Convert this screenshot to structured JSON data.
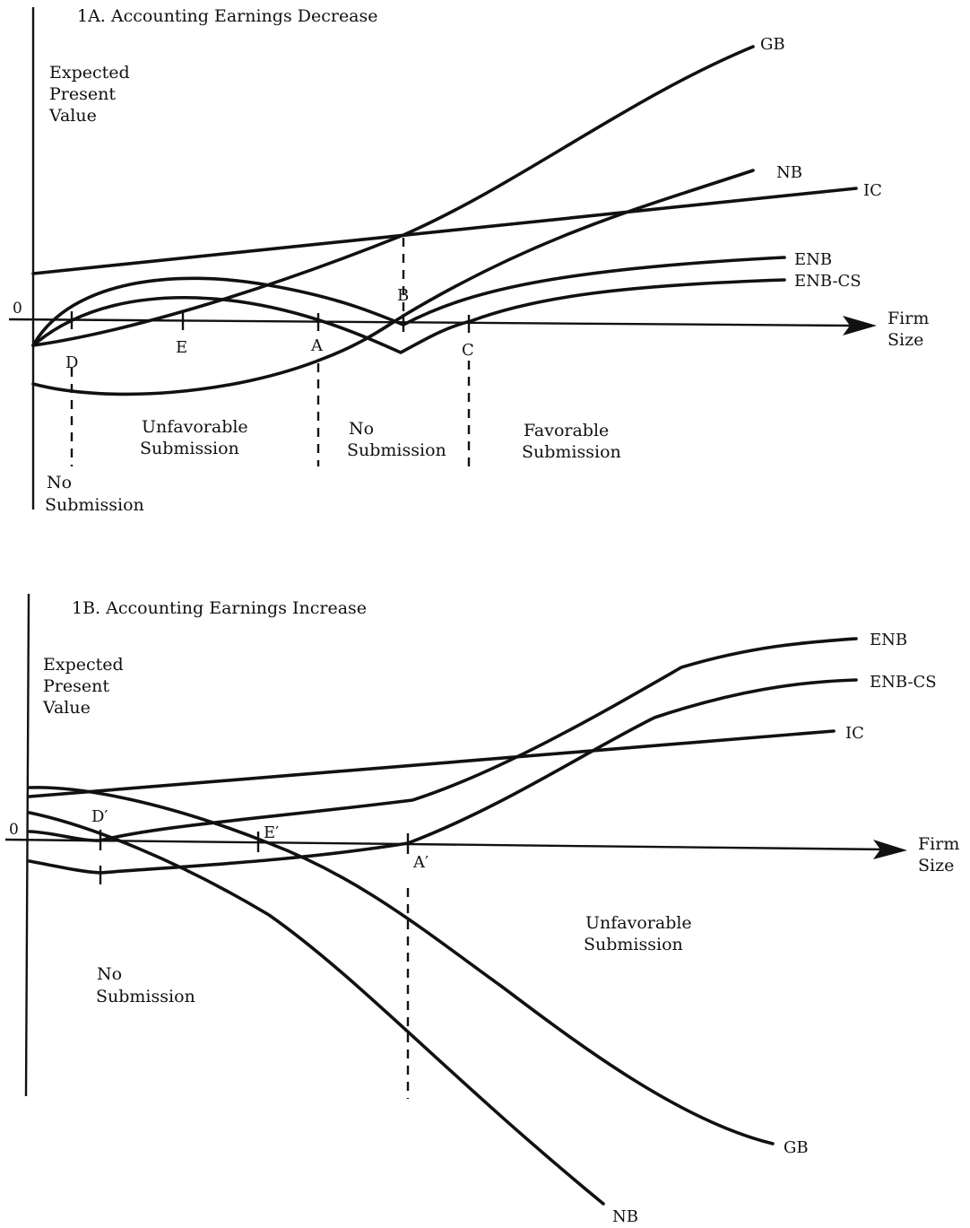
{
  "figure": {
    "panels": [
      {
        "id": "1A",
        "title": "1A.  Accounting Earnings Decrease",
        "y_axis_label": [
          "Expected",
          "Present",
          "Value"
        ],
        "x_axis_label": [
          "Firm",
          "Size"
        ],
        "zero_label": "0",
        "curves": [
          {
            "id": "GB",
            "label": "GB"
          },
          {
            "id": "NB",
            "label": "NB"
          },
          {
            "id": "IC",
            "label": "IC"
          },
          {
            "id": "ENB",
            "label": "ENB"
          },
          {
            "id": "ENB-CS",
            "label": "ENB-CS"
          }
        ],
        "points": [
          {
            "id": "D",
            "label": "D"
          },
          {
            "id": "E",
            "label": "E"
          },
          {
            "id": "A",
            "label": "A"
          },
          {
            "id": "B",
            "label": "B"
          },
          {
            "id": "C",
            "label": "C"
          }
        ],
        "regions": [
          {
            "id": "no-submission-left",
            "lines": [
              "No",
              "Submission"
            ]
          },
          {
            "id": "unfavorable",
            "lines": [
              "Unfavorable",
              "Submission"
            ]
          },
          {
            "id": "no-submission-mid",
            "lines": [
              "No",
              "Submission"
            ]
          },
          {
            "id": "favorable",
            "lines": [
              "Favorable",
              "Submission"
            ]
          }
        ]
      },
      {
        "id": "1B",
        "title": "1B.  Accounting Earnings Increase",
        "y_axis_label": [
          "Expected",
          "Present",
          "Value"
        ],
        "x_axis_label": [
          "Firm",
          "Size"
        ],
        "zero_label": "0",
        "curves": [
          {
            "id": "ENB",
            "label": "ENB"
          },
          {
            "id": "ENB-CS",
            "label": "ENB-CS"
          },
          {
            "id": "IC",
            "label": "IC"
          },
          {
            "id": "GB",
            "label": "GB"
          },
          {
            "id": "NB",
            "label": "NB"
          }
        ],
        "points": [
          {
            "id": "D'",
            "label": "D′"
          },
          {
            "id": "E'",
            "label": "E′"
          },
          {
            "id": "A'",
            "label": "A′"
          }
        ],
        "regions": [
          {
            "id": "no-submission",
            "lines": [
              "No",
              "Submission"
            ]
          },
          {
            "id": "unfavorable",
            "lines": [
              "Unfavorable",
              "Submission"
            ]
          }
        ]
      }
    ]
  }
}
